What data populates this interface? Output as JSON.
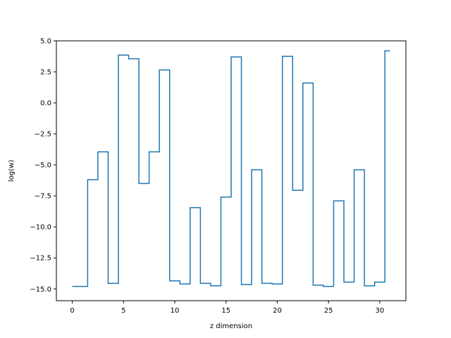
{
  "chart_data": {
    "type": "line",
    "drawstyle": "steps-mid",
    "xlabel": "z dimension",
    "ylabel": "log(w)",
    "xlim": [
      -1.55,
      32.55
    ],
    "ylim": [
      -15.95,
      5.0
    ],
    "x_ticks": [
      0,
      5,
      10,
      15,
      20,
      25,
      30
    ],
    "x_tick_labels": [
      "0",
      "5",
      "10",
      "15",
      "20",
      "25",
      "30"
    ],
    "y_ticks": [
      5.0,
      2.5,
      0.0,
      -2.5,
      -5.0,
      -7.5,
      -10.0,
      -12.5,
      -15.0
    ],
    "y_tick_labels": [
      "5.0",
      "2.5",
      "0.0",
      "−2.5",
      "−5.0",
      "−7.5",
      "−10.0",
      "−12.5",
      "−15.0"
    ],
    "grid": false,
    "line_color": "#1f77b4",
    "series": [
      {
        "x": [
          0,
          1,
          2,
          3,
          4,
          5,
          6,
          7,
          8,
          9,
          10,
          11,
          12,
          13,
          14,
          15,
          16,
          17,
          18,
          19,
          20,
          21,
          22,
          23,
          24,
          25,
          26,
          27,
          28,
          29,
          30,
          31
        ],
        "values": [
          -14.8,
          -14.8,
          -6.2,
          -3.95,
          -14.55,
          3.85,
          3.55,
          -6.5,
          -3.95,
          2.65,
          -14.35,
          -14.6,
          -8.45,
          -14.55,
          -14.75,
          -7.6,
          3.7,
          -14.65,
          -5.4,
          -14.55,
          -14.6,
          3.75,
          -7.05,
          1.6,
          -14.7,
          -14.8,
          -7.9,
          -14.45,
          -5.4,
          -14.75,
          -14.45,
          4.2
        ]
      }
    ]
  }
}
